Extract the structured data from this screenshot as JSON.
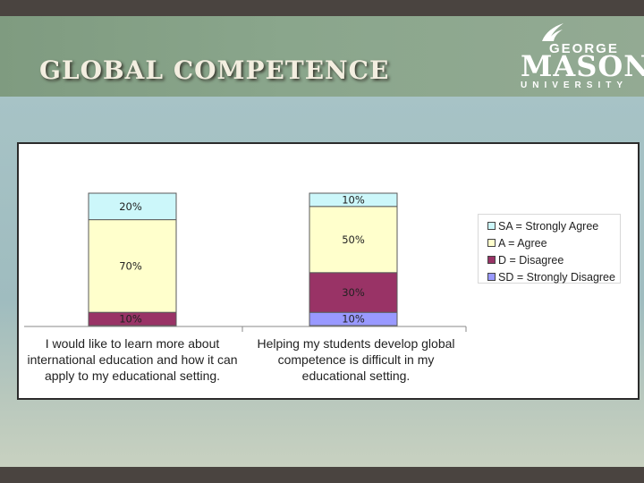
{
  "slide": {
    "title": "GLOBAL COMPETENCE",
    "logo": {
      "george": "GEORGE",
      "mason": "MASON",
      "university": "UNIVERSITY"
    }
  },
  "colors": {
    "SA": "#ccf7fa",
    "A": "#ffffcc",
    "D": "#993366",
    "SD": "#9999ff",
    "border": "#5a5a5a"
  },
  "chart_data": {
    "type": "bar",
    "stacked": true,
    "title": "",
    "xlabel": "",
    "ylabel": "",
    "ylim": [
      0,
      100
    ],
    "legend_position": "right",
    "categories": [
      "I would like to learn more about international education and how it can apply to my educational setting.",
      "Helping my students develop global competence is difficult in my educational setting."
    ],
    "series": [
      {
        "name": "SD = Strongly Disagree",
        "key": "SD",
        "values": [
          0,
          10
        ],
        "labels": [
          "",
          "10%"
        ]
      },
      {
        "name": "D = Disagree",
        "key": "D",
        "values": [
          10,
          30
        ],
        "labels": [
          "10%",
          "30%"
        ]
      },
      {
        "name": "A = Agree",
        "key": "A",
        "values": [
          70,
          50
        ],
        "labels": [
          "70%",
          "50%"
        ]
      },
      {
        "name": "SA = Strongly Agree",
        "key": "SA",
        "values": [
          20,
          10
        ],
        "labels": [
          "20%",
          "10%"
        ]
      }
    ],
    "legend": [
      {
        "label": "SA = Strongly Agree",
        "key": "SA"
      },
      {
        "label": "A = Agree",
        "key": "A"
      },
      {
        "label": "D = Disagree",
        "key": "D"
      },
      {
        "label": "SD = Strongly Disagree",
        "key": "SD"
      }
    ]
  }
}
